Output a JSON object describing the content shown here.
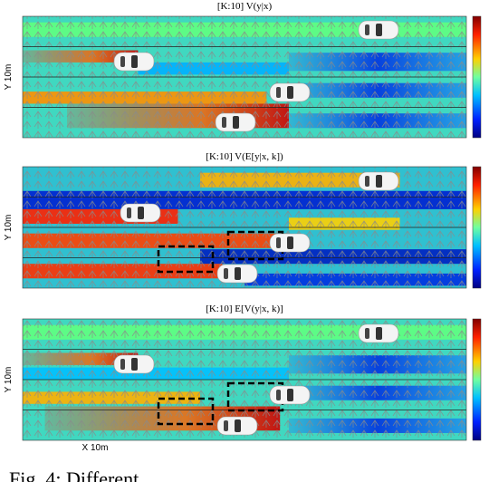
{
  "panels": [
    {
      "title": "[K:10]  V(y|x)",
      "y_label": "Y 10m"
    },
    {
      "title": "[K:10]  V(E[y|x, k])",
      "y_label": "Y 10m"
    },
    {
      "title": "[K:10]  E[V(y|x, k)]",
      "y_label": "Y 10m"
    }
  ],
  "x_label": "X 10m",
  "caption": "Fig. 4: Different"
}
